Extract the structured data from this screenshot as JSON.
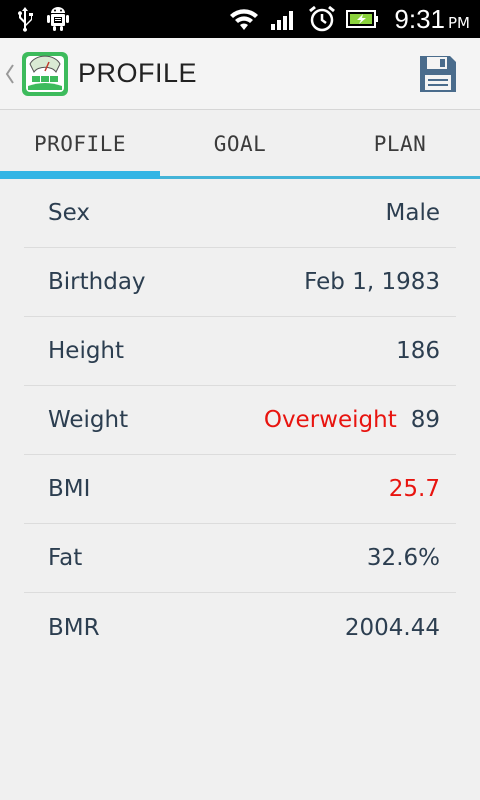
{
  "status_bar": {
    "time": "9:31",
    "ampm": "PM",
    "icons": [
      "usb-icon",
      "android-debug-icon",
      "wifi-icon",
      "signal-icon",
      "alarm-icon",
      "battery-charging-icon"
    ]
  },
  "action_bar": {
    "title": "PROFILE",
    "logo_icon": "scale-icon",
    "save_icon": "floppy-disk-icon"
  },
  "tabs": [
    {
      "label": "PROFILE",
      "active": true
    },
    {
      "label": "GOAL",
      "active": false
    },
    {
      "label": "PLAN",
      "active": false
    }
  ],
  "profile": {
    "sex": {
      "label": "Sex",
      "value": "Male"
    },
    "birthday": {
      "label": "Birthday",
      "value": "Feb 1, 1983"
    },
    "height": {
      "label": "Height",
      "value": "186"
    },
    "weight": {
      "label": "Weight",
      "status": "Overweight",
      "value": "89"
    },
    "bmi": {
      "label": "BMI",
      "value": "25.7"
    },
    "fat": {
      "label": "Fat",
      "value": "32.6%"
    },
    "bmr": {
      "label": "BMR",
      "value": "2004.44"
    }
  },
  "colors": {
    "accent": "#33b5e5",
    "warning": "#e8140f",
    "text": "#2c3e50"
  }
}
